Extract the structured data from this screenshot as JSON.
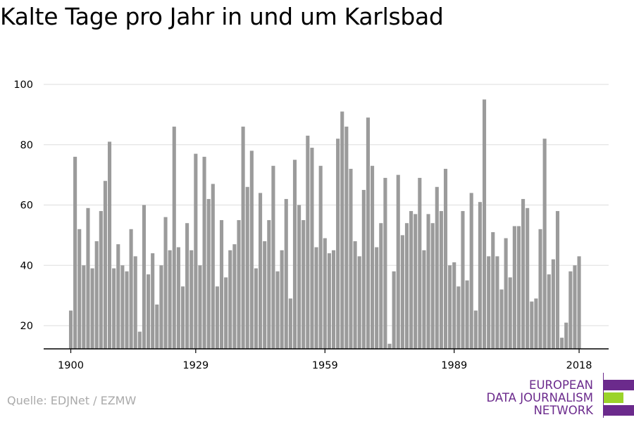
{
  "title": "Kalte Tage pro Jahr in und um Karlsbad",
  "source": "Quelle: EDJNet / EZMW",
  "logo": {
    "lines": [
      "EUROPEAN",
      "DATA JOURNALISM",
      "NETWORK"
    ],
    "colors": {
      "purple": "#6b2a8c",
      "green": "#9bd32a"
    }
  },
  "chart_data": {
    "type": "bar",
    "title": "Kalte Tage pro Jahr in und um Karlsbad",
    "xlabel": "",
    "ylabel": "",
    "x_start": 1900,
    "x_end": 2018,
    "x_ticks": [
      "1900",
      "1929",
      "1959",
      "1989",
      "2018"
    ],
    "y_ticks": [
      "20",
      "40",
      "60",
      "80",
      "100"
    ],
    "ylim": [
      12,
      100
    ],
    "grid": true,
    "bar_color": "#9b9b9b",
    "values": [
      25,
      76,
      52,
      40,
      59,
      39,
      48,
      58,
      68,
      81,
      39,
      47,
      40,
      38,
      52,
      43,
      18,
      60,
      37,
      44,
      27,
      40,
      56,
      45,
      86,
      46,
      33,
      54,
      45,
      77,
      40,
      76,
      62,
      67,
      33,
      55,
      36,
      45,
      47,
      55,
      86,
      66,
      78,
      39,
      64,
      48,
      55,
      73,
      38,
      45,
      62,
      29,
      75,
      60,
      55,
      83,
      79,
      46,
      73,
      49,
      44,
      45,
      82,
      91,
      86,
      72,
      48,
      43,
      65,
      89,
      73,
      46,
      54,
      69,
      14,
      38,
      70,
      50,
      54,
      58,
      57,
      69,
      45,
      57,
      54,
      66,
      58,
      72,
      40,
      41,
      33,
      58,
      35,
      64,
      25,
      61,
      95,
      43,
      51,
      43,
      32,
      49,
      36,
      53,
      53,
      62,
      59,
      28,
      29,
      52,
      82,
      37,
      42,
      58,
      16,
      21,
      38,
      40,
      43
    ]
  }
}
